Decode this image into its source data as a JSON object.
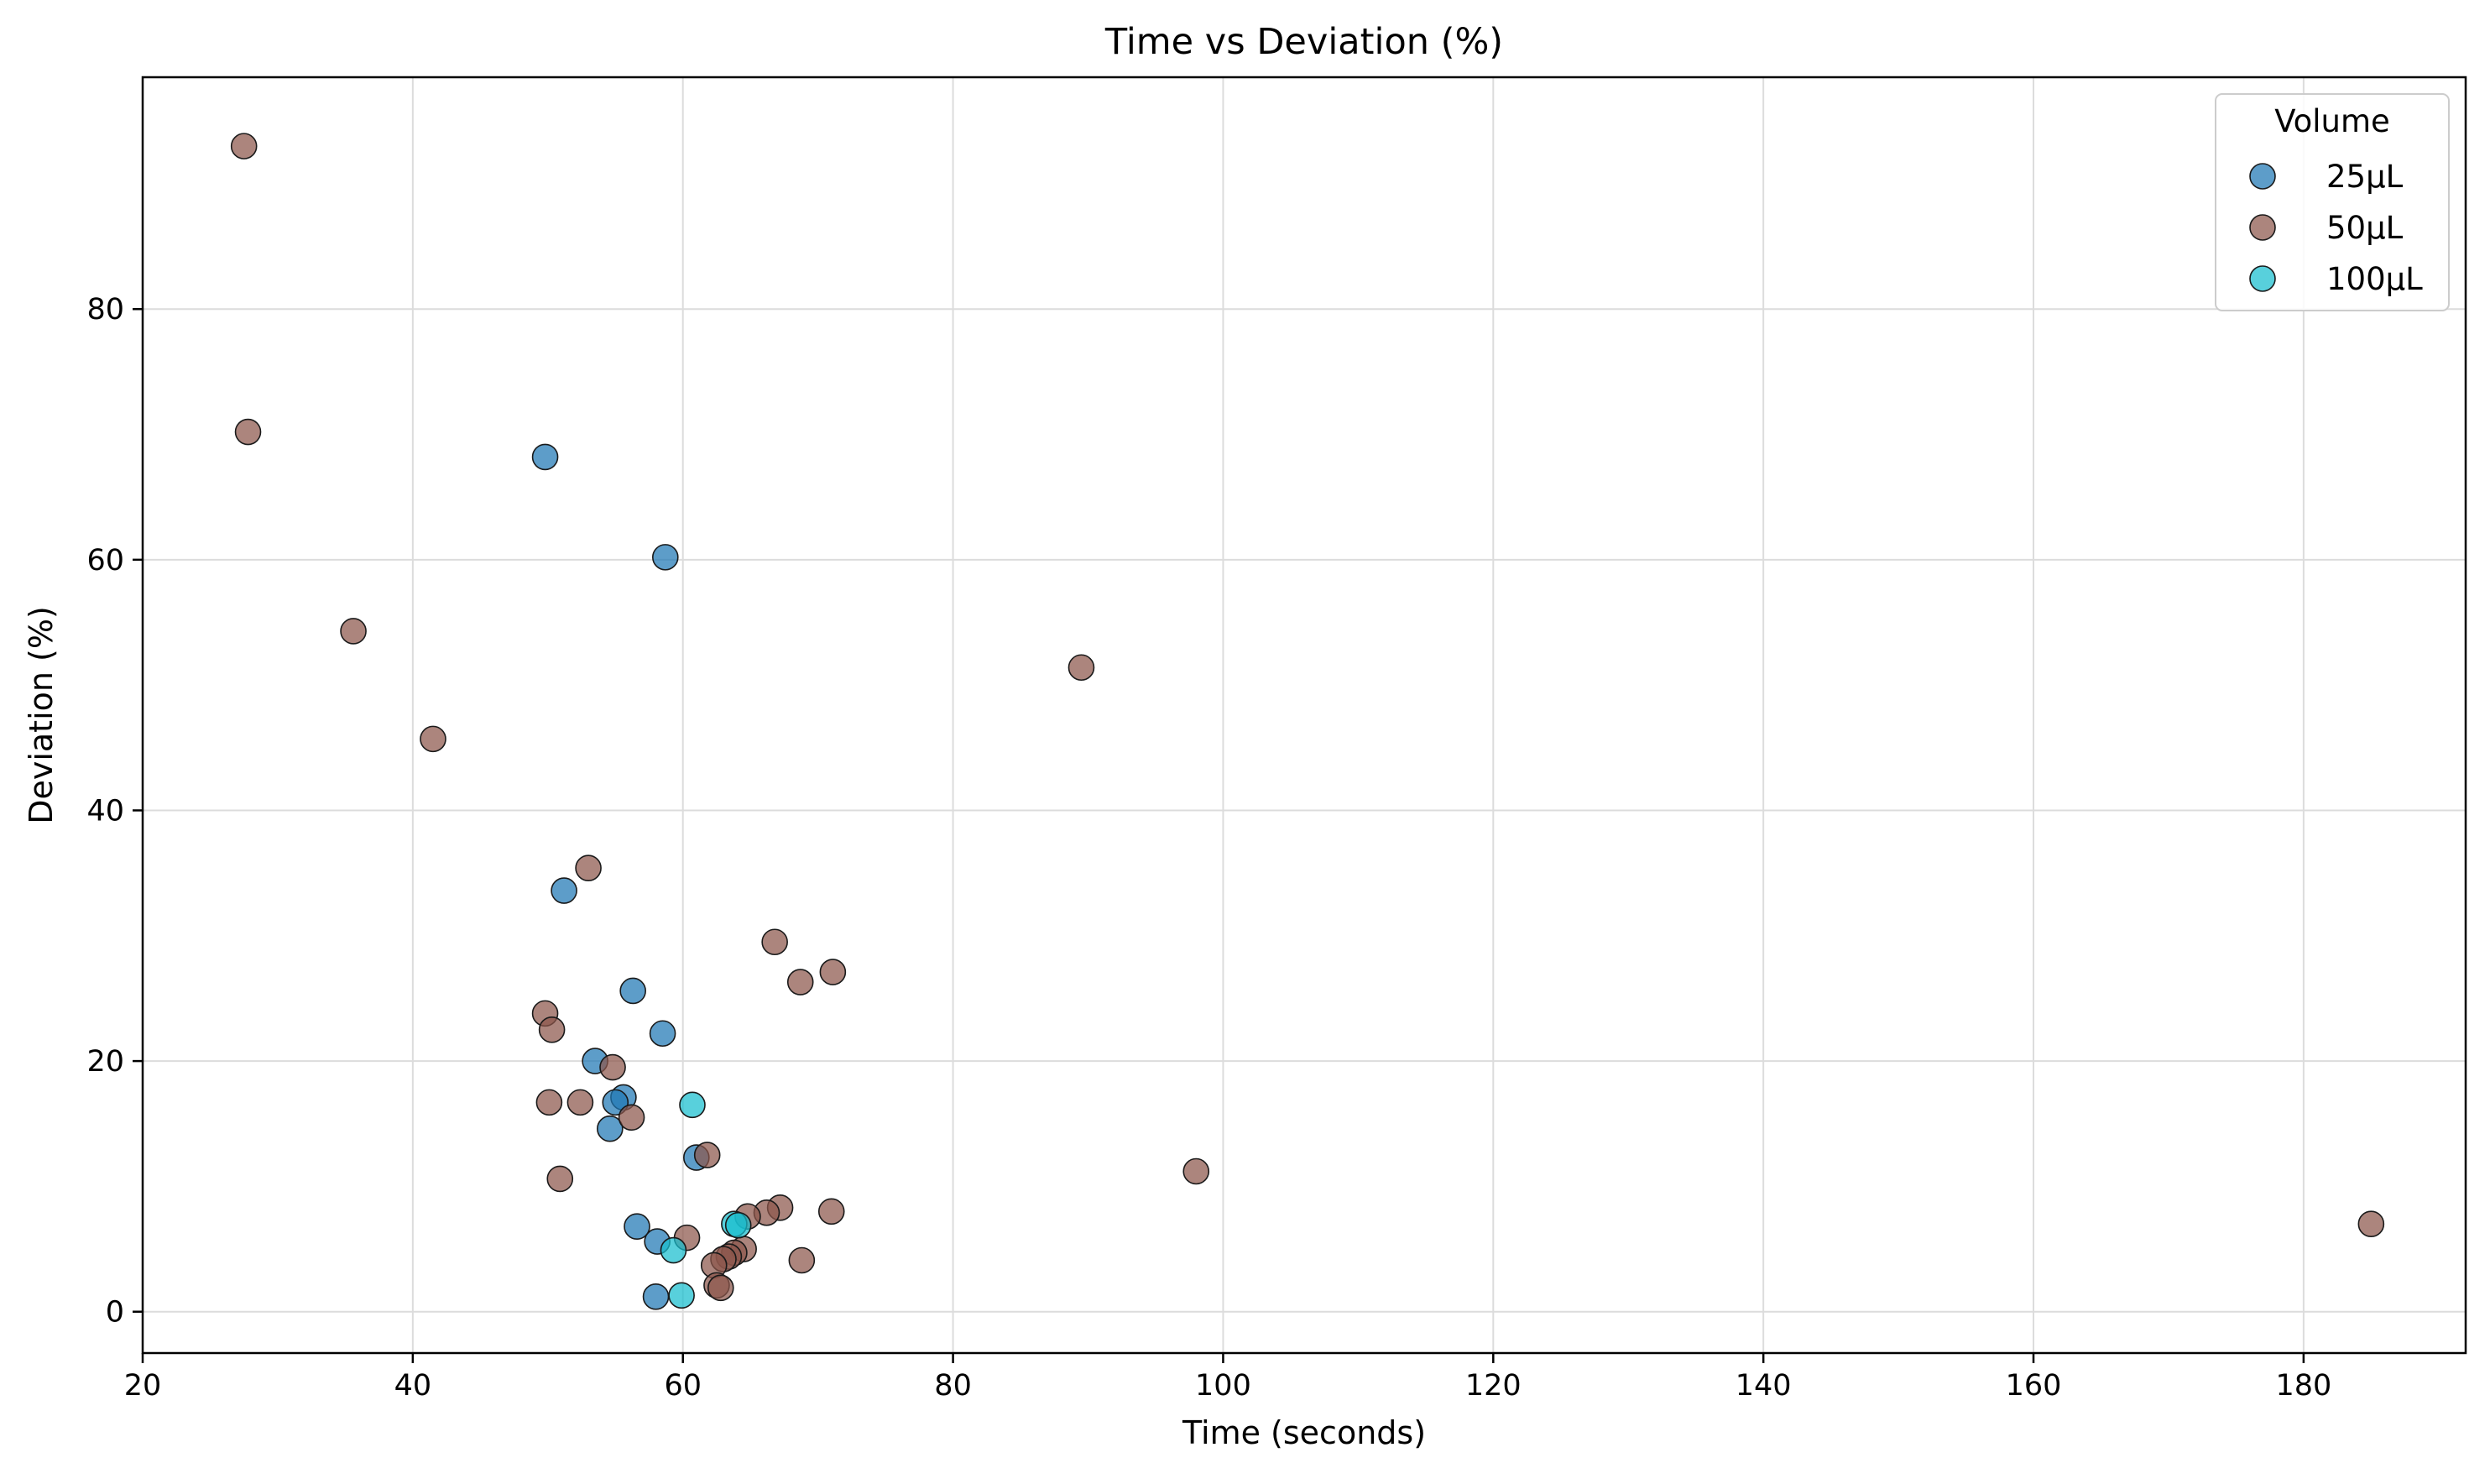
{
  "chart_data": {
    "type": "scatter",
    "title": "Time vs Deviation (%)",
    "xlabel": "Time (seconds)",
    "ylabel": "Deviation (%)",
    "xlim": [
      20,
      192
    ],
    "ylim": [
      -3.3,
      98.5
    ],
    "xticks": [
      20,
      40,
      60,
      80,
      100,
      120,
      140,
      160,
      180
    ],
    "yticks": [
      0,
      20,
      40,
      60,
      80
    ],
    "grid": true,
    "legend": {
      "title": "Volume",
      "placement": "top-right"
    },
    "series": [
      {
        "name": "25µL",
        "color": "#1f77b4",
        "points": [
          [
            49.8,
            68.2
          ],
          [
            58.7,
            60.2
          ],
          [
            51.2,
            33.6
          ],
          [
            56.3,
            25.6
          ],
          [
            58.5,
            22.2
          ],
          [
            53.5,
            20.0
          ],
          [
            55.6,
            17.1
          ],
          [
            55.0,
            16.7
          ],
          [
            54.6,
            14.6
          ],
          [
            61.0,
            12.3
          ],
          [
            56.6,
            6.8
          ],
          [
            58.1,
            5.6
          ],
          [
            58.0,
            1.2
          ]
        ]
      },
      {
        "name": "50µL",
        "color": "#8c564b",
        "points": [
          [
            27.5,
            93.0
          ],
          [
            27.8,
            70.2
          ],
          [
            35.6,
            54.3
          ],
          [
            41.5,
            45.7
          ],
          [
            89.5,
            51.4
          ],
          [
            53.0,
            35.4
          ],
          [
            66.8,
            29.5
          ],
          [
            71.1,
            27.1
          ],
          [
            68.7,
            26.3
          ],
          [
            49.8,
            23.8
          ],
          [
            50.3,
            22.5
          ],
          [
            54.8,
            19.5
          ],
          [
            50.1,
            16.7
          ],
          [
            52.4,
            16.7
          ],
          [
            56.2,
            15.5
          ],
          [
            61.8,
            12.5
          ],
          [
            50.9,
            10.6
          ],
          [
            98.0,
            11.2
          ],
          [
            185.0,
            7.0
          ],
          [
            71.0,
            8.0
          ],
          [
            67.2,
            8.3
          ],
          [
            66.2,
            7.9
          ],
          [
            64.8,
            7.6
          ],
          [
            60.3,
            5.9
          ],
          [
            64.5,
            5.0
          ],
          [
            63.8,
            4.7
          ],
          [
            63.4,
            4.4
          ],
          [
            63.0,
            4.2
          ],
          [
            62.3,
            3.7
          ],
          [
            68.8,
            4.1
          ],
          [
            62.5,
            2.1
          ],
          [
            62.8,
            1.9
          ]
        ]
      },
      {
        "name": "100µL",
        "color": "#17becf",
        "points": [
          [
            60.7,
            16.5
          ],
          [
            63.8,
            7.0
          ],
          [
            64.1,
            6.9
          ],
          [
            59.3,
            4.9
          ],
          [
            59.9,
            1.3
          ]
        ]
      }
    ]
  }
}
